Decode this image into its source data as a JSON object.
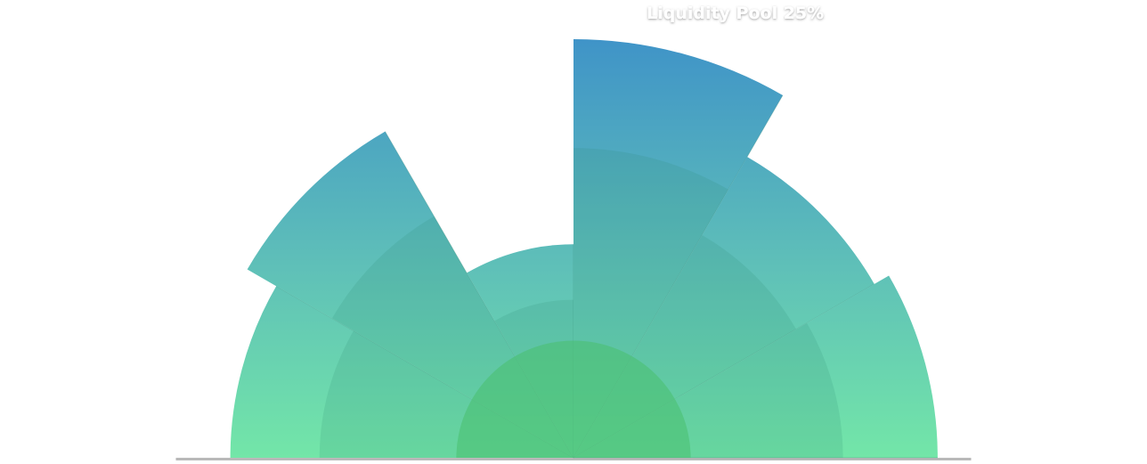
{
  "chart_data": {
    "type": "polar-area-semicircle",
    "title": "",
    "xlabel": "",
    "ylabel": "",
    "categories": [
      "",
      "",
      "",
      "",
      "",
      ""
    ],
    "series": [
      {
        "values": [
          0.82,
          0.9,
          0.51,
          1.0,
          0.83,
          0.87
        ]
      }
    ],
    "rings": [
      1.0,
      0.85,
      0.61,
      0.44,
      0.29
    ],
    "annotations": [
      {
        "slice": 3,
        "text": "Liquidity Pool 25%"
      }
    ],
    "colors": {
      "gradient_top": "#3f93c8",
      "gradient_mid": "#5fc0b8",
      "gradient_bottom": "#73e6a8",
      "inner_core": "#48c06d",
      "baseline_shadow": "#8a8a8a",
      "label": "#ffffff"
    },
    "legend": "none",
    "grid": false
  }
}
